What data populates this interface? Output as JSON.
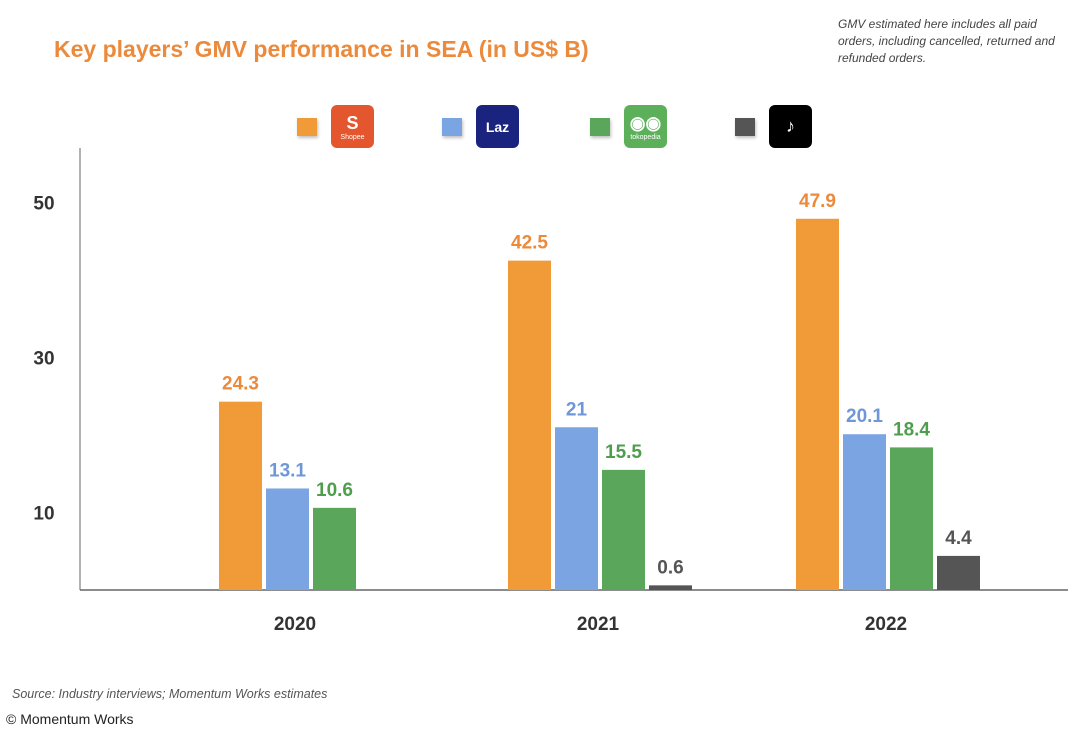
{
  "title": "Key players’ GMV performance in SEA (in US$ B)",
  "note": "GMV estimated here includes all paid orders, including cancelled, returned and refunded orders.",
  "source": "Source: Industry interviews; Momentum Works estimates",
  "copyright": "© Momentum Works",
  "legend": [
    {
      "name": "Shopee",
      "logo_text": "S",
      "sub": "Shopee",
      "color": "#F09B38",
      "logo_bg": "#E4572E",
      "icon": "shopee-logo"
    },
    {
      "name": "Lazada",
      "logo_text": "Laz",
      "sub": "",
      "color": "#7BA4E3",
      "logo_bg": "#1A237E",
      "icon": "lazada-logo"
    },
    {
      "name": "Tokopedia",
      "logo_text": "◉◉",
      "sub": "tokopedia",
      "color": "#5AA65A",
      "logo_bg": "#5DB05A",
      "icon": "tokopedia-logo"
    },
    {
      "name": "TikTok Shop",
      "logo_text": "♪",
      "sub": "",
      "color": "#555555",
      "logo_bg": "#000000",
      "icon": "tiktok-logo"
    }
  ],
  "chart_data": {
    "type": "bar",
    "title": "Key players’ GMV performance in SEA (in US$ B)",
    "categories": [
      "2020",
      "2021",
      "2022"
    ],
    "series": [
      {
        "name": "Shopee",
        "values": [
          24.3,
          42.5,
          47.9
        ],
        "color": "#F09B38",
        "label_color": "#EC8A3C"
      },
      {
        "name": "Lazada",
        "values": [
          13.1,
          21,
          20.1
        ],
        "color": "#7BA4E3",
        "label_color": "#6F97D8"
      },
      {
        "name": "Tokopedia",
        "values": [
          10.6,
          15.5,
          18.4
        ],
        "color": "#5AA65A",
        "label_color": "#4E9E4E"
      },
      {
        "name": "TikTok Shop",
        "values": [
          null,
          0.6,
          4.4
        ],
        "color": "#555555",
        "label_color": "#555555"
      }
    ],
    "yticks": [
      "10",
      "30",
      "50"
    ],
    "ylim": [
      0,
      55
    ],
    "legend_position": "top",
    "grid": false
  }
}
